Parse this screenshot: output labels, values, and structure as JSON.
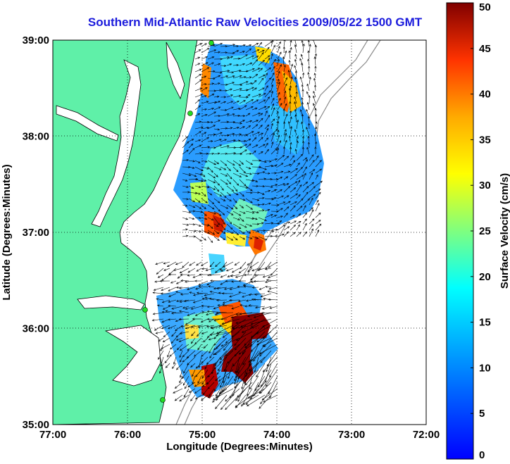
{
  "title": "Southern Mid-Atlantic Raw Velocities 2009/05/22 1500 GMT",
  "map": {
    "x_axis": {
      "label": "Longitude (Degrees:Minutes)",
      "ticks": [
        "77:00",
        "76:00",
        "75:00",
        "74:00",
        "73:00",
        "72:00"
      ],
      "range": [
        -77,
        -72
      ]
    },
    "y_axis": {
      "label": "Latitude (Degrees:Minutes)",
      "ticks": [
        "35:00",
        "36:00",
        "37:00",
        "38:00",
        "39:00"
      ],
      "range": [
        35,
        39
      ]
    },
    "grid": "dotted",
    "land_color": "#5ff0a8",
    "contour_color": "#8a8a8a",
    "vector_color": "#000000",
    "station_color": "#22dd22"
  },
  "colorbar": {
    "label": "Surface Velocity (cm/s)",
    "units": "cm/s",
    "range": [
      0,
      50
    ],
    "ticks": [
      "0",
      "5",
      "10",
      "15",
      "20",
      "25",
      "30",
      "35",
      "40",
      "45",
      "50"
    ],
    "colormap": "jet"
  }
}
